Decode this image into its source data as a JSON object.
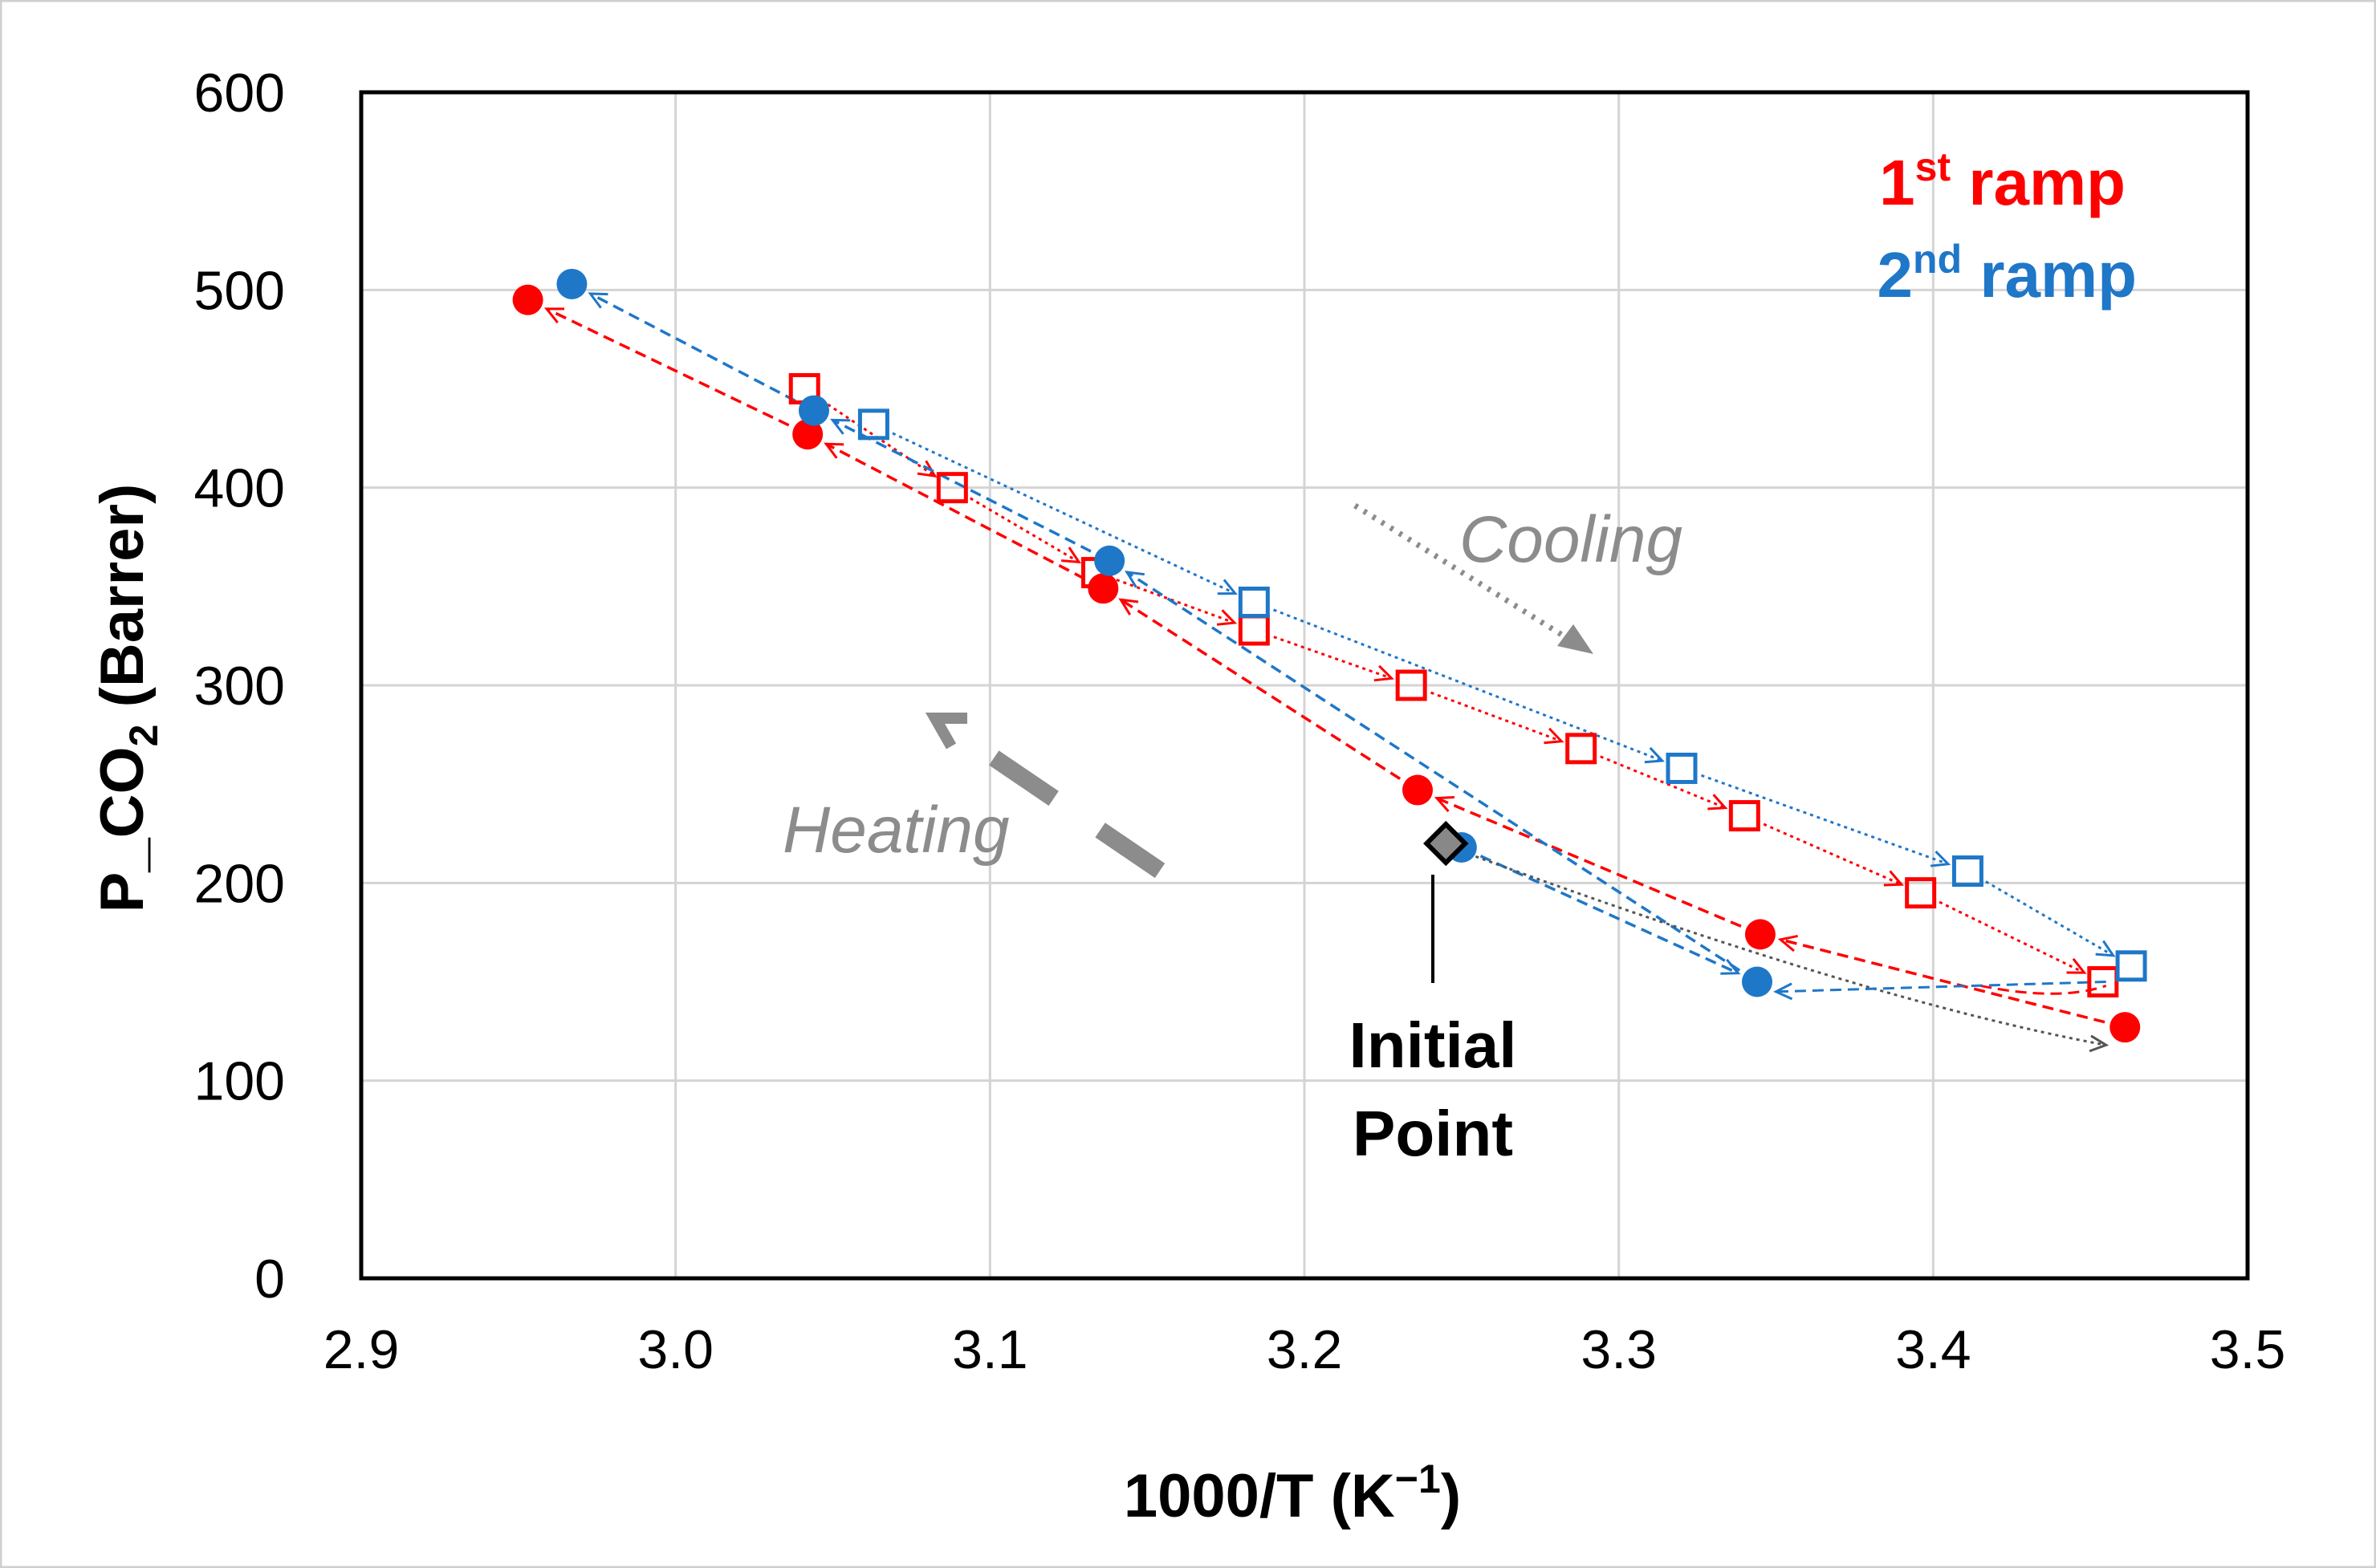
{
  "chart_data": {
    "type": "scatter",
    "title": "",
    "xlabel": "1000/T (K⁻¹)",
    "ylabel": "P_CO2 (Barrer)",
    "ylabel_main": "P_CO",
    "ylabel_sub": "2",
    "ylabel_rest": " (Barrer)",
    "xlim": [
      2.9,
      3.5
    ],
    "ylim": [
      0,
      600
    ],
    "xticks": [
      "2.9",
      "3.0",
      "3.1",
      "3.2",
      "3.3",
      "3.4",
      "3.5"
    ],
    "yticks": [
      "0",
      "100",
      "200",
      "300",
      "400",
      "500",
      "600"
    ],
    "grid": true,
    "legend": {
      "position": "top-right",
      "entries": [
        {
          "prefix": "1",
          "sup": "st",
          "suffix": " ramp",
          "color": "#ff0000"
        },
        {
          "prefix": "2",
          "sup": "nd",
          "suffix": " ramp",
          "color": "#1f77c8"
        }
      ]
    },
    "colors": {
      "ramp1": "#ff0000",
      "ramp2": "#1f77c8",
      "initial": "#000000",
      "annotation": "#8c8c8c"
    },
    "series": [
      {
        "name": "1st ramp heating",
        "marker": "filled-circle",
        "color": "#ff0000",
        "line": "dashed",
        "x": [
          3.461,
          3.345,
          3.236,
          3.136,
          3.042,
          2.953
        ],
        "y": [
          127,
          174,
          247,
          349,
          427,
          495
        ]
      },
      {
        "name": "1st ramp cooling",
        "marker": "open-square",
        "color": "#ff0000",
        "line": "dotted",
        "x": [
          3.041,
          3.088,
          3.134,
          3.184,
          3.234,
          3.288,
          3.34,
          3.396,
          3.454
        ],
        "y": [
          450,
          400,
          357,
          328,
          300,
          268,
          234,
          195,
          150
        ]
      },
      {
        "name": "2nd ramp heating",
        "marker": "filled-circle",
        "color": "#1f77c8",
        "line": "dashed",
        "x": [
          3.25,
          3.344,
          3.138,
          3.044,
          2.967
        ],
        "y": [
          218,
          150,
          363,
          439,
          503
        ]
      },
      {
        "name": "2nd ramp cooling",
        "marker": "open-square",
        "color": "#1f77c8",
        "line": "dotted",
        "x": [
          3.063,
          3.184,
          3.32,
          3.411,
          3.463
        ],
        "y": [
          432,
          342,
          258,
          206,
          158
        ]
      }
    ],
    "initial_point": {
      "x": 3.245,
      "y": 220,
      "label_line1": "Initial",
      "label_line2": "Point"
    },
    "annotations": {
      "cooling": "Cooling",
      "heating": "Heating"
    }
  }
}
